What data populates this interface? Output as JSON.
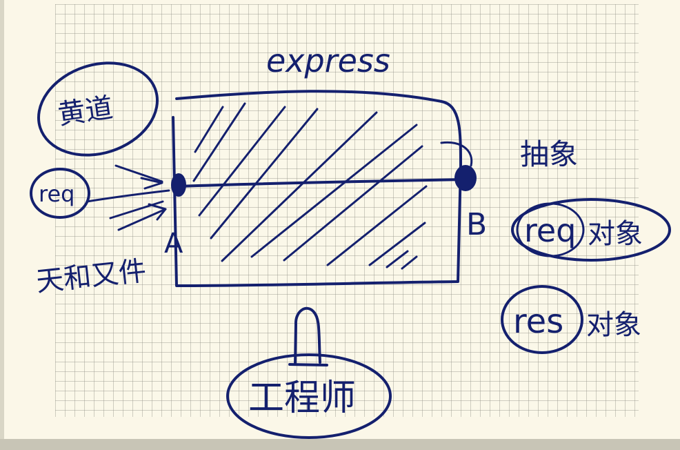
{
  "diagram": {
    "title": "express",
    "left_top_label": "黄道",
    "left_input_label": "req",
    "left_bottom_label": "天和又件",
    "point_a_label": "A",
    "point_b_label": "B",
    "right_top_label": "抽象",
    "right_req_label": "req",
    "right_req_suffix": "对象",
    "right_res_label": "res",
    "right_res_suffix": "对象",
    "bottom_label": "工程师"
  },
  "colors": {
    "ink": "#14206e",
    "paper": "#fbf8e9",
    "grid": "#a8a89a"
  }
}
